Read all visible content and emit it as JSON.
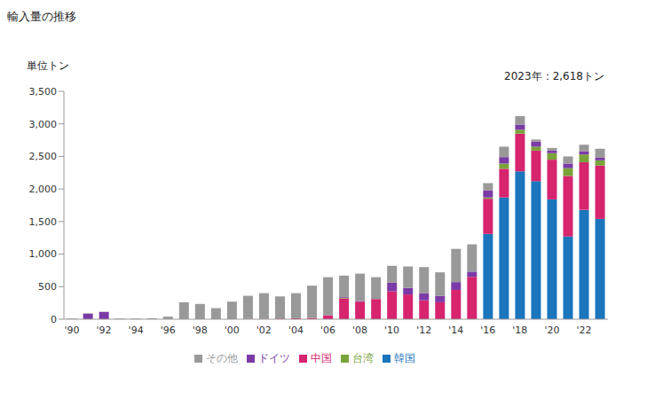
{
  "chart_data": {
    "type": "bar",
    "stacked": true,
    "title": "輸入量の推移",
    "y_label": "単位トン",
    "annotation": "2023年：2,618トン",
    "categories": [
      "'90",
      null,
      "'92",
      null,
      "'94",
      null,
      "'96",
      null,
      "'98",
      null,
      "'00",
      null,
      "'02",
      null,
      "'04",
      null,
      "'06",
      null,
      "'08",
      null,
      "'10",
      null,
      "'12",
      null,
      "'14",
      null,
      "'16",
      null,
      "'18",
      null,
      "'20",
      null,
      "'22",
      null
    ],
    "series": [
      {
        "name": "韓国",
        "color": "#1a75bc",
        "values": [
          0,
          0,
          0,
          0,
          0,
          0,
          0,
          0,
          0,
          0,
          0,
          0,
          0,
          0,
          0,
          0,
          0,
          0,
          0,
          0,
          0,
          0,
          0,
          0,
          0,
          0,
          1310,
          1870,
          2270,
          2120,
          1840,
          1270,
          1680,
          1540
        ]
      },
      {
        "name": "中国",
        "color": "#d6246e",
        "values": [
          0,
          0,
          0,
          0,
          0,
          0,
          0,
          0,
          0,
          0,
          0,
          5,
          5,
          10,
          15,
          20,
          60,
          320,
          270,
          310,
          430,
          380,
          290,
          260,
          450,
          650,
          540,
          440,
          580,
          470,
          610,
          930,
          730,
          820
        ]
      },
      {
        "name": "台湾",
        "color": "#7aa33a",
        "values": [
          0,
          0,
          0,
          0,
          0,
          0,
          0,
          0,
          0,
          0,
          0,
          0,
          0,
          0,
          0,
          0,
          0,
          10,
          0,
          0,
          0,
          0,
          0,
          0,
          0,
          0,
          20,
          80,
          60,
          60,
          100,
          120,
          120,
          80
        ]
      },
      {
        "name": "ドイツ",
        "color": "#7b3aa6",
        "values": [
          0,
          85,
          110,
          0,
          0,
          0,
          0,
          0,
          0,
          0,
          0,
          0,
          0,
          0,
          0,
          0,
          0,
          10,
          10,
          0,
          130,
          100,
          110,
          100,
          120,
          80,
          110,
          100,
          80,
          80,
          40,
          70,
          50,
          40
        ]
      },
      {
        "name": "その他",
        "color": "#999999",
        "values": [
          10,
          5,
          5,
          10,
          10,
          15,
          40,
          260,
          235,
          170,
          270,
          355,
          395,
          340,
          385,
          495,
          585,
          330,
          420,
          335,
          260,
          330,
          400,
          360,
          510,
          420,
          110,
          160,
          130,
          30,
          40,
          110,
          100,
          138
        ]
      }
    ],
    "ylim": [
      0,
      3500
    ],
    "yticks": [
      0,
      500,
      {
        "value": 1000,
        "label": "1,000"
      },
      {
        "value": 1500,
        "label": "1,500"
      },
      {
        "value": 2000,
        "label": "2,000"
      },
      {
        "value": 2500,
        "label": "2,500"
      },
      {
        "value": 3000,
        "label": "3,000"
      },
      {
        "value": 3500,
        "label": "3,500"
      }
    ],
    "grid": false,
    "legend": "bottom"
  }
}
